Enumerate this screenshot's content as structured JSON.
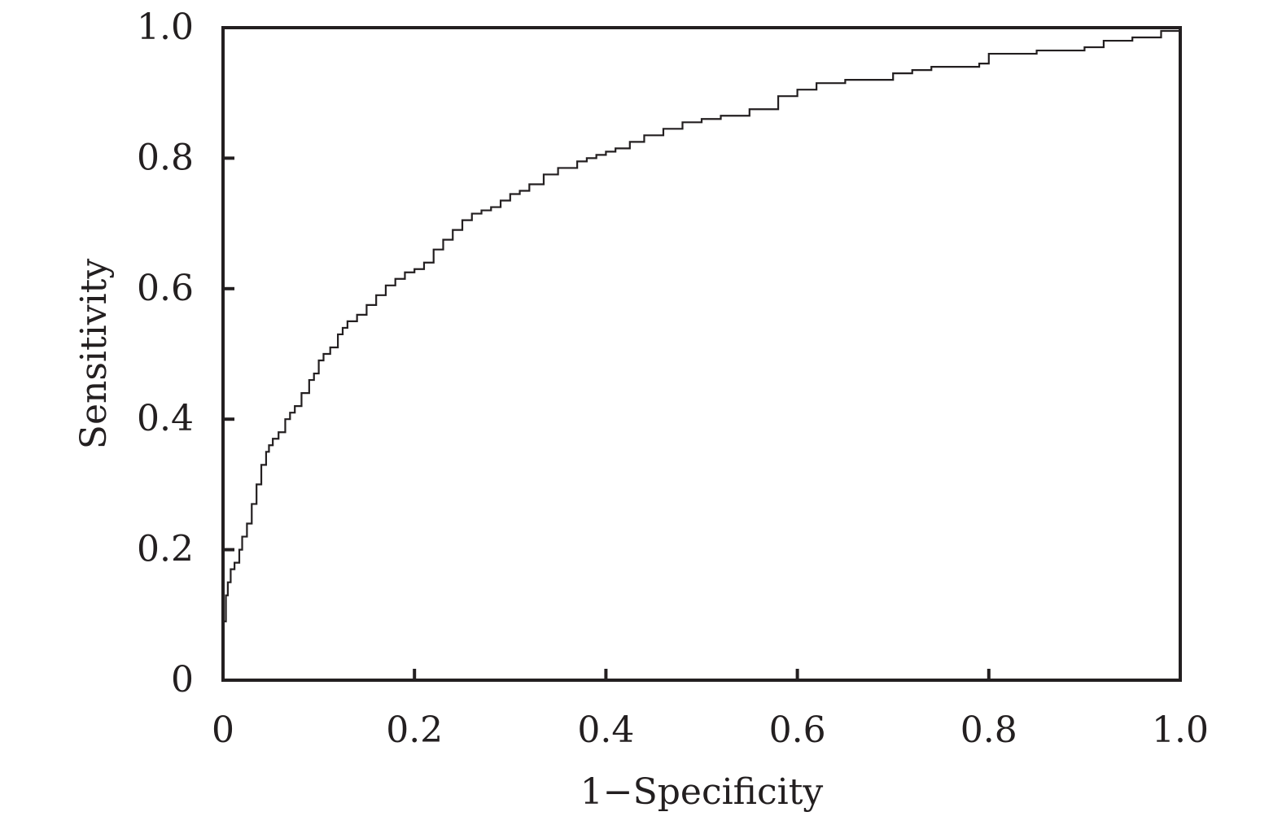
{
  "chart_data": {
    "type": "line",
    "title": "",
    "xlabel": "1−Specificity",
    "ylabel": "Sensitivity",
    "xlim": [
      0,
      1
    ],
    "ylim": [
      0,
      1
    ],
    "x_ticks": [
      0,
      0.2,
      0.4,
      0.6,
      0.8,
      1.0
    ],
    "x_tick_labels": [
      "0",
      "0.2",
      "0.4",
      "0.6",
      "0.8",
      "1.0"
    ],
    "y_ticks": [
      0,
      0.2,
      0.4,
      0.6,
      0.8,
      1.0
    ],
    "y_tick_labels": [
      "0",
      "0.2",
      "0.4",
      "0.6",
      "0.8",
      "1.0"
    ],
    "grid": false,
    "step": true,
    "colors": {
      "line": "#231f20",
      "frame": "#231f20"
    },
    "series": [
      {
        "x": [
          0,
          0.003,
          0.005,
          0.008,
          0.012,
          0.017,
          0.02,
          0.025,
          0.03,
          0.035,
          0.04,
          0.045,
          0.048,
          0.052,
          0.058,
          0.065,
          0.07,
          0.075,
          0.082,
          0.09,
          0.095,
          0.1,
          0.105,
          0.112,
          0.12,
          0.125,
          0.13,
          0.14,
          0.15,
          0.16,
          0.17,
          0.18,
          0.19,
          0.2,
          0.21,
          0.22,
          0.23,
          0.24,
          0.25,
          0.26,
          0.27,
          0.28,
          0.29,
          0.3,
          0.31,
          0.32,
          0.335,
          0.35,
          0.37,
          0.38,
          0.39,
          0.4,
          0.41,
          0.425,
          0.44,
          0.46,
          0.48,
          0.5,
          0.52,
          0.55,
          0.58,
          0.6,
          0.62,
          0.65,
          0.7,
          0.72,
          0.74,
          0.79,
          0.8,
          0.85,
          0.9,
          0.92,
          0.95,
          0.98,
          1.0
        ],
        "y": [
          0.09,
          0.13,
          0.15,
          0.17,
          0.18,
          0.2,
          0.22,
          0.24,
          0.27,
          0.3,
          0.33,
          0.35,
          0.36,
          0.37,
          0.38,
          0.4,
          0.41,
          0.42,
          0.44,
          0.46,
          0.47,
          0.49,
          0.5,
          0.51,
          0.53,
          0.54,
          0.55,
          0.56,
          0.575,
          0.59,
          0.605,
          0.615,
          0.625,
          0.63,
          0.64,
          0.66,
          0.675,
          0.69,
          0.705,
          0.715,
          0.72,
          0.725,
          0.735,
          0.745,
          0.75,
          0.76,
          0.775,
          0.785,
          0.795,
          0.8,
          0.805,
          0.81,
          0.815,
          0.825,
          0.835,
          0.845,
          0.855,
          0.86,
          0.865,
          0.875,
          0.895,
          0.905,
          0.915,
          0.92,
          0.93,
          0.935,
          0.94,
          0.945,
          0.96,
          0.965,
          0.97,
          0.98,
          0.985,
          0.995,
          1.0
        ]
      }
    ]
  }
}
